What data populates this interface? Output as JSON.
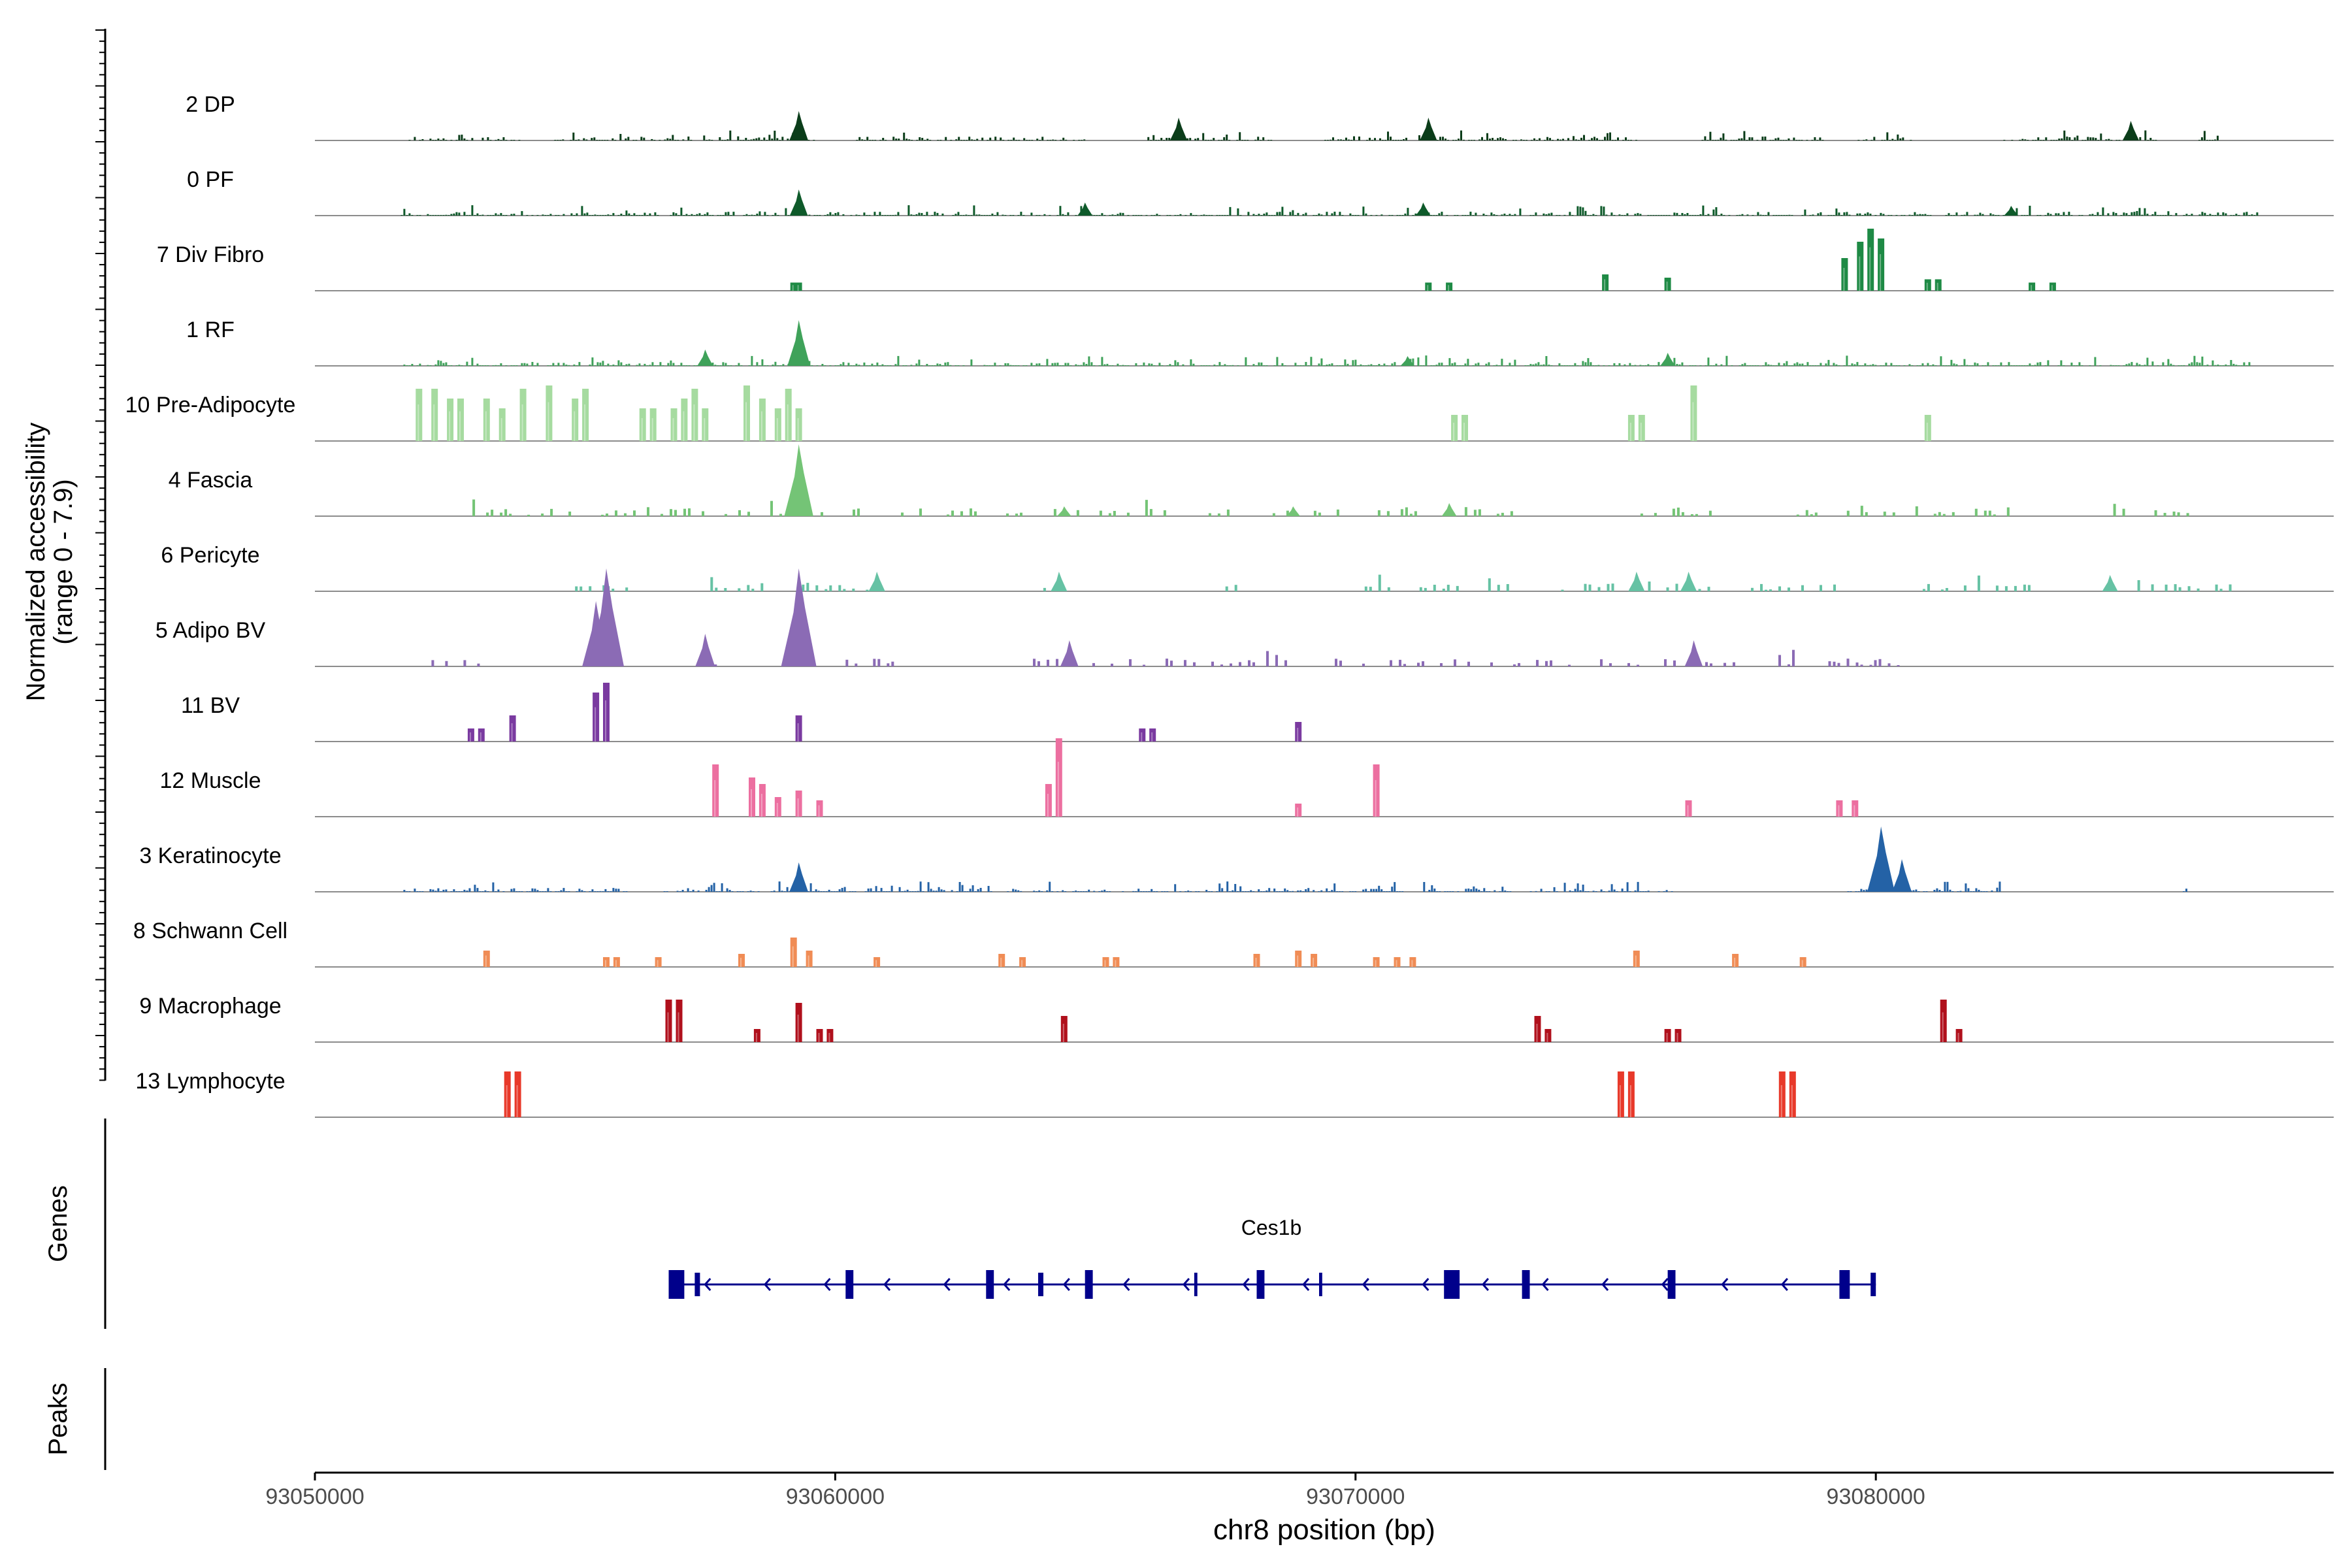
{
  "chart_data": {
    "type": "area",
    "title": "",
    "xlabel": "chr8 position (bp)",
    "ylabel": "Normalized accessibility",
    "ylabel_sub": "(range 0 - 7.9)",
    "y_range": [
      0,
      7.9
    ],
    "xlim": [
      93050000,
      93088800
    ],
    "x_ticks": [
      "93050000",
      "93060000",
      "93070000",
      "93080000"
    ],
    "x_tick_values": [
      93050000,
      93060000,
      93070000,
      93080000
    ],
    "tracks": [
      {
        "name": "2 DP",
        "color": "#0b3d1a",
        "style": "dense",
        "regions": [
          [
            93051800,
            93054000
          ],
          [
            93054600,
            93059600
          ],
          [
            93060400,
            93064800
          ],
          [
            93066000,
            93068400
          ],
          [
            93069400,
            93075400
          ],
          [
            93076600,
            93079000
          ],
          [
            93079600,
            93080800
          ],
          [
            93082400,
            93085400
          ],
          [
            93086200,
            93086600
          ]
        ],
        "peaks": [
          [
            93059300,
            0.9
          ],
          [
            93066600,
            0.7
          ],
          [
            93071400,
            0.7
          ],
          [
            93084900,
            0.6
          ]
        ]
      },
      {
        "name": "0 PF",
        "color": "#0e5a2a",
        "style": "dense",
        "regions": [
          [
            93051600,
            93087400
          ]
        ],
        "peaks": [
          [
            93059300,
            0.8
          ],
          [
            93064800,
            0.4
          ],
          [
            93071300,
            0.4
          ],
          [
            93082600,
            0.3
          ]
        ]
      },
      {
        "name": "7 Div Fibro",
        "color": "#1e8a45",
        "style": "bars",
        "regions": [],
        "peaks": [
          [
            93059200,
            0.25
          ],
          [
            93059300,
            0.25
          ],
          [
            93071400,
            0.25
          ],
          [
            93071800,
            0.25
          ],
          [
            93074800,
            0.5
          ],
          [
            93076000,
            0.4
          ],
          [
            93079400,
            1.0
          ],
          [
            93079700,
            1.5
          ],
          [
            93079900,
            1.9
          ],
          [
            93080100,
            1.6
          ],
          [
            93081000,
            0.35
          ],
          [
            93081200,
            0.35
          ],
          [
            93083000,
            0.25
          ],
          [
            93083400,
            0.25
          ]
        ]
      },
      {
        "name": "1 RF",
        "color": "#3fa25a",
        "style": "dense",
        "regions": [
          [
            93051700,
            93087200
          ]
        ],
        "peaks": [
          [
            93057500,
            0.5
          ],
          [
            93059300,
            1.4
          ],
          [
            93071000,
            0.3
          ],
          [
            93076000,
            0.4
          ]
        ]
      },
      {
        "name": "10 Pre-Adipocyte",
        "color": "#a6dba0",
        "style": "bars",
        "regions": [],
        "peaks": [
          [
            93052000,
            1.6
          ],
          [
            93052300,
            1.6
          ],
          [
            93052600,
            1.3
          ],
          [
            93052800,
            1.3
          ],
          [
            93053300,
            1.3
          ],
          [
            93053600,
            1.0
          ],
          [
            93054000,
            1.6
          ],
          [
            93054500,
            1.7
          ],
          [
            93055000,
            1.3
          ],
          [
            93055200,
            1.6
          ],
          [
            93056300,
            1.0
          ],
          [
            93056500,
            1.0
          ],
          [
            93056900,
            1.0
          ],
          [
            93057100,
            1.3
          ],
          [
            93057300,
            1.6
          ],
          [
            93057500,
            1.0
          ],
          [
            93058300,
            1.7
          ],
          [
            93058600,
            1.3
          ],
          [
            93058900,
            1.0
          ],
          [
            93059100,
            1.6
          ],
          [
            93059300,
            1.0
          ],
          [
            93071900,
            0.8
          ],
          [
            93072100,
            0.8
          ],
          [
            93075300,
            0.8
          ],
          [
            93075500,
            0.8
          ],
          [
            93076500,
            1.7
          ],
          [
            93081000,
            0.8
          ]
        ]
      },
      {
        "name": "4 Fascia",
        "color": "#74c476",
        "style": "sparse",
        "regions": [
          [
            93052500,
            93055000
          ],
          [
            93055500,
            93060500
          ],
          [
            93061000,
            93063800
          ],
          [
            93064200,
            93066500
          ],
          [
            93067000,
            93073200
          ],
          [
            93075300,
            93077000
          ],
          [
            93078300,
            93083000
          ],
          [
            93084300,
            93086000
          ]
        ],
        "peaks": [
          [
            93059300,
            2.2
          ],
          [
            93064400,
            0.3
          ],
          [
            93068800,
            0.3
          ],
          [
            93071800,
            0.4
          ]
        ]
      },
      {
        "name": "6 Pericyte",
        "color": "#66c2a4",
        "style": "sparse",
        "regions": [
          [
            93055000,
            93056000
          ],
          [
            93057600,
            93060800
          ],
          [
            93064000,
            93065000
          ],
          [
            93067500,
            93067800
          ],
          [
            93070000,
            93073000
          ],
          [
            93073600,
            93076900
          ],
          [
            93077600,
            93079400
          ],
          [
            93080900,
            93083000
          ],
          [
            93084500,
            93086800
          ]
        ],
        "peaks": [
          [
            93060800,
            0.6
          ],
          [
            93064300,
            0.6
          ],
          [
            93075400,
            0.6
          ],
          [
            93076400,
            0.6
          ],
          [
            93084500,
            0.5
          ]
        ]
      },
      {
        "name": "5 Adipo BV",
        "color": "#8b6bb5",
        "style": "sparse",
        "regions": [
          [
            93051800,
            93053300
          ],
          [
            93055400,
            93055900
          ],
          [
            93057500,
            93058400
          ],
          [
            93059100,
            93059500
          ],
          [
            93060200,
            93061700
          ],
          [
            93063800,
            93078600
          ],
          [
            93079000,
            93080800
          ]
        ],
        "peaks": [
          [
            93055400,
            2.0
          ],
          [
            93055600,
            3.0
          ],
          [
            93057500,
            1.0
          ],
          [
            93059300,
            3.0
          ],
          [
            93064500,
            0.8
          ],
          [
            93076500,
            0.8
          ]
        ]
      },
      {
        "name": "11 BV",
        "color": "#7a3aa0",
        "style": "bars",
        "regions": [],
        "peaks": [
          [
            93053000,
            0.4
          ],
          [
            93053200,
            0.4
          ],
          [
            93053800,
            0.8
          ],
          [
            93055400,
            1.5
          ],
          [
            93055600,
            1.8
          ],
          [
            93059300,
            0.8
          ],
          [
            93065900,
            0.4
          ],
          [
            93066100,
            0.4
          ],
          [
            93068900,
            0.6
          ]
        ]
      },
      {
        "name": "12 Muscle",
        "color": "#ec6fa0",
        "style": "bars",
        "regions": [],
        "peaks": [
          [
            93057700,
            1.6
          ],
          [
            93058400,
            1.2
          ],
          [
            93058600,
            1.0
          ],
          [
            93058900,
            0.6
          ],
          [
            93059300,
            0.8
          ],
          [
            93059700,
            0.5
          ],
          [
            93064100,
            1.0
          ],
          [
            93064300,
            2.4
          ],
          [
            93068900,
            0.4
          ],
          [
            93070400,
            1.6
          ],
          [
            93076400,
            0.5
          ],
          [
            93079300,
            0.5
          ],
          [
            93079600,
            0.5
          ]
        ]
      },
      {
        "name": "3 Keratinocyte",
        "color": "#2462a6",
        "style": "dense",
        "regions": [
          [
            93051700,
            93056000
          ],
          [
            93056600,
            93063000
          ],
          [
            93063300,
            93071000
          ],
          [
            93071300,
            93073000
          ],
          [
            93073300,
            93076100
          ],
          [
            93079400,
            93082400
          ],
          [
            93085900,
            93086000
          ]
        ],
        "peaks": [
          [
            93059300,
            0.9
          ],
          [
            93080100,
            2.0
          ],
          [
            93080500,
            1.0
          ]
        ]
      },
      {
        "name": "8 Schwann Cell",
        "color": "#f08c55",
        "style": "bars",
        "regions": [],
        "peaks": [
          [
            93053300,
            0.5
          ],
          [
            93055600,
            0.3
          ],
          [
            93055800,
            0.3
          ],
          [
            93056600,
            0.3
          ],
          [
            93058200,
            0.4
          ],
          [
            93059200,
            0.9
          ],
          [
            93059500,
            0.5
          ],
          [
            93060800,
            0.3
          ],
          [
            93063200,
            0.4
          ],
          [
            93063600,
            0.3
          ],
          [
            93065200,
            0.3
          ],
          [
            93065400,
            0.3
          ],
          [
            93068100,
            0.4
          ],
          [
            93068900,
            0.5
          ],
          [
            93069200,
            0.4
          ],
          [
            93070400,
            0.3
          ],
          [
            93070800,
            0.3
          ],
          [
            93071100,
            0.3
          ],
          [
            93075400,
            0.5
          ],
          [
            93077300,
            0.4
          ],
          [
            93078600,
            0.3
          ]
        ]
      },
      {
        "name": "9 Macrophage",
        "color": "#b0101c",
        "style": "bars",
        "regions": [],
        "peaks": [
          [
            93056800,
            1.3
          ],
          [
            93057000,
            1.3
          ],
          [
            93058500,
            0.4
          ],
          [
            93059300,
            1.2
          ],
          [
            93059700,
            0.4
          ],
          [
            93059900,
            0.4
          ],
          [
            93064400,
            0.8
          ],
          [
            93073500,
            0.8
          ],
          [
            93073700,
            0.4
          ],
          [
            93076000,
            0.4
          ],
          [
            93076200,
            0.4
          ],
          [
            93081300,
            1.3
          ],
          [
            93081600,
            0.4
          ]
        ]
      },
      {
        "name": "13 Lymphocyte",
        "color": "#e8392a",
        "style": "bars",
        "regions": [],
        "peaks": [
          [
            93053700,
            1.4
          ],
          [
            93053900,
            1.4
          ],
          [
            93075100,
            1.4
          ],
          [
            93075300,
            1.4
          ],
          [
            93078200,
            1.4
          ],
          [
            93078400,
            1.4
          ]
        ]
      }
    ],
    "gene_track": {
      "label": "Genes",
      "gene_name": "Ces1b",
      "start": 93056800,
      "end": 93080000,
      "strand": "-",
      "color": "#00008b",
      "exons": [
        [
          93056800,
          93057100
        ],
        [
          93057300,
          93057400
        ],
        [
          93060200,
          93060350
        ],
        [
          93062900,
          93063050
        ],
        [
          93063900,
          93064000
        ],
        [
          93064800,
          93064950
        ],
        [
          93066900,
          93066960
        ],
        [
          93068100,
          93068250
        ],
        [
          93069300,
          93069360
        ],
        [
          93071700,
          93072000
        ],
        [
          93073200,
          93073350
        ],
        [
          93076000,
          93076150
        ],
        [
          93079300,
          93079500
        ],
        [
          93079900,
          93080000
        ]
      ]
    },
    "peak_track": {
      "label": "Peaks"
    }
  }
}
